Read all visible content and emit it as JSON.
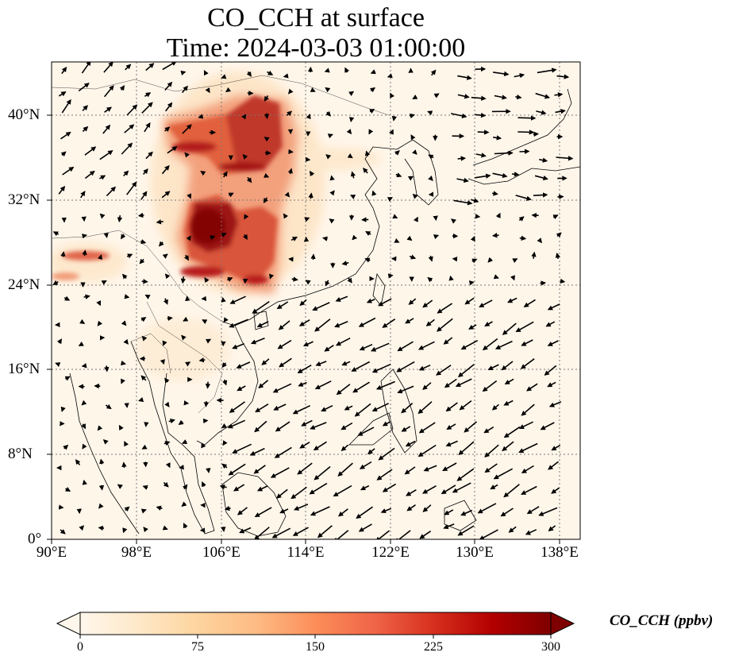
{
  "map": {
    "title": "CO_CCH at surface",
    "subtitle": "Time: 2024-03-03 01:00:00",
    "projection": "PlateCarree",
    "extent": {
      "lon_min": 90,
      "lon_max": 140,
      "lat_min": 0,
      "lat_max": 45
    },
    "lon_ticks": [
      90,
      98,
      106,
      114,
      122,
      130,
      138
    ],
    "lon_tick_labels": [
      "90°E",
      "98°E",
      "106°E",
      "114°E",
      "122°E",
      "130°E",
      "138°E"
    ],
    "lat_ticks": [
      0,
      8,
      16,
      24,
      32,
      40
    ],
    "lat_tick_labels": [
      "0°",
      "8°N",
      "16°N",
      "24°N",
      "32°N",
      "40°N"
    ],
    "gridlines": true,
    "coastlines": true,
    "country_borders": true,
    "wind_vectors": true
  },
  "colorbar": {
    "label": "CO_CCH (ppbv)",
    "colormap": "OrRd",
    "min": 0,
    "max": 300,
    "extend": "both",
    "ticks": [
      0,
      75,
      150,
      225,
      300
    ],
    "tick_labels": [
      "0",
      "75",
      "150",
      "225",
      "300"
    ],
    "colors": [
      "#fff7ec",
      "#fee8c8",
      "#fdd49e",
      "#fdbb84",
      "#fc8d59",
      "#ef6548",
      "#d7301f",
      "#b30000",
      "#7f0000"
    ]
  }
}
